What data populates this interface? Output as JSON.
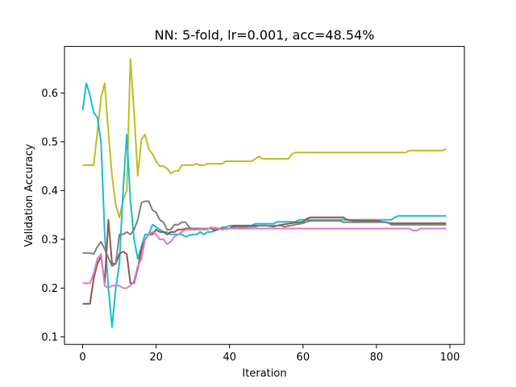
{
  "chart_data": {
    "type": "line",
    "title": "NN: 5-fold, lr=0.001, acc=48.54%",
    "xlabel": "Iteration",
    "ylabel": "Validation Accuracy",
    "xlim": [
      -4.95,
      103.95
    ],
    "ylim": [
      0.0845,
      0.6955
    ],
    "x_ticks": [
      0,
      20,
      40,
      60,
      80,
      100
    ],
    "y_ticks": [
      0.1,
      0.2,
      0.3,
      0.4,
      0.5,
      0.6
    ],
    "x_tick_labels": [
      "0",
      "20",
      "40",
      "60",
      "80",
      "100"
    ],
    "y_tick_labels": [
      "0.1",
      "0.2",
      "0.3",
      "0.4",
      "0.5",
      "0.6"
    ],
    "grid": false,
    "legend": "none",
    "series": [
      {
        "color": "#bcbd22",
        "points": [
          [
            0,
            0.452
          ],
          [
            1,
            0.452
          ],
          [
            2,
            0.452
          ],
          [
            3,
            0.452
          ],
          [
            4,
            0.52
          ],
          [
            5,
            0.59
          ],
          [
            6,
            0.62
          ],
          [
            7,
            0.52
          ],
          [
            8,
            0.43
          ],
          [
            9,
            0.37
          ],
          [
            10,
            0.345
          ],
          [
            11,
            0.38
          ],
          [
            12,
            0.4
          ],
          [
            13,
            0.67
          ],
          [
            14,
            0.56
          ],
          [
            15,
            0.43
          ],
          [
            16,
            0.505
          ],
          [
            17,
            0.515
          ],
          [
            18,
            0.485
          ],
          [
            19,
            0.475
          ],
          [
            20,
            0.46
          ],
          [
            21,
            0.45
          ],
          [
            22,
            0.45
          ],
          [
            23,
            0.445
          ],
          [
            24,
            0.435
          ],
          [
            25,
            0.44
          ],
          [
            26,
            0.44
          ],
          [
            27,
            0.452
          ],
          [
            28,
            0.452
          ],
          [
            29,
            0.452
          ],
          [
            30,
            0.452
          ],
          [
            31,
            0.455
          ],
          [
            32,
            0.452
          ],
          [
            33,
            0.452
          ],
          [
            34,
            0.455
          ],
          [
            36,
            0.455
          ],
          [
            38,
            0.455
          ],
          [
            39,
            0.46
          ],
          [
            46,
            0.46
          ],
          [
            47,
            0.465
          ],
          [
            48,
            0.47
          ],
          [
            49,
            0.465
          ],
          [
            56,
            0.465
          ],
          [
            57,
            0.475
          ],
          [
            58,
            0.478
          ],
          [
            88,
            0.478
          ],
          [
            89,
            0.482
          ],
          [
            98,
            0.482
          ],
          [
            99,
            0.486
          ]
        ]
      },
      {
        "color": "#17becf",
        "points": [
          [
            0,
            0.565
          ],
          [
            1,
            0.62
          ],
          [
            2,
            0.595
          ],
          [
            3,
            0.56
          ],
          [
            4,
            0.55
          ],
          [
            5,
            0.5
          ],
          [
            6,
            0.31
          ],
          [
            7,
            0.2
          ],
          [
            8,
            0.12
          ],
          [
            9,
            0.2
          ],
          [
            10,
            0.25
          ],
          [
            11,
            0.4
          ],
          [
            12,
            0.515
          ],
          [
            13,
            0.38
          ],
          [
            14,
            0.3
          ],
          [
            15,
            0.26
          ],
          [
            16,
            0.285
          ],
          [
            17,
            0.31
          ],
          [
            18,
            0.31
          ],
          [
            19,
            0.33
          ],
          [
            20,
            0.325
          ],
          [
            21,
            0.32
          ],
          [
            22,
            0.315
          ],
          [
            23,
            0.315
          ],
          [
            24,
            0.31
          ],
          [
            25,
            0.31
          ],
          [
            26,
            0.31
          ],
          [
            27,
            0.31
          ],
          [
            28,
            0.305
          ],
          [
            29,
            0.308
          ],
          [
            30,
            0.31
          ],
          [
            31,
            0.31
          ],
          [
            32,
            0.315
          ],
          [
            33,
            0.31
          ],
          [
            34,
            0.315
          ],
          [
            35,
            0.315
          ],
          [
            36,
            0.318
          ],
          [
            37,
            0.32
          ],
          [
            38,
            0.325
          ],
          [
            39,
            0.325
          ],
          [
            40,
            0.328
          ],
          [
            46,
            0.328
          ],
          [
            47,
            0.332
          ],
          [
            52,
            0.332
          ],
          [
            53,
            0.336
          ],
          [
            58,
            0.336
          ],
          [
            59,
            0.34
          ],
          [
            84,
            0.34
          ],
          [
            85,
            0.345
          ],
          [
            86,
            0.348
          ],
          [
            99,
            0.348
          ]
        ]
      },
      {
        "color": "#8c564b",
        "points": [
          [
            0,
            0.168
          ],
          [
            1,
            0.168
          ],
          [
            2,
            0.168
          ],
          [
            3,
            0.22
          ],
          [
            4,
            0.25
          ],
          [
            5,
            0.265
          ],
          [
            6,
            0.21
          ],
          [
            7,
            0.34
          ],
          [
            8,
            0.25
          ],
          [
            9,
            0.25
          ],
          [
            10,
            0.27
          ],
          [
            11,
            0.275
          ],
          [
            12,
            0.27
          ],
          [
            13,
            0.21
          ],
          [
            14,
            0.21
          ],
          [
            15,
            0.24
          ],
          [
            16,
            0.28
          ],
          [
            17,
            0.3
          ],
          [
            18,
            0.31
          ],
          [
            19,
            0.31
          ],
          [
            20,
            0.32
          ],
          [
            21,
            0.315
          ],
          [
            22,
            0.315
          ],
          [
            23,
            0.31
          ],
          [
            24,
            0.315
          ],
          [
            25,
            0.315
          ],
          [
            26,
            0.32
          ],
          [
            27,
            0.32
          ],
          [
            28,
            0.322
          ],
          [
            35,
            0.322
          ],
          [
            36,
            0.318
          ],
          [
            37,
            0.322
          ],
          [
            40,
            0.322
          ],
          [
            41,
            0.328
          ],
          [
            50,
            0.328
          ],
          [
            52,
            0.326
          ],
          [
            54,
            0.33
          ],
          [
            60,
            0.336
          ],
          [
            61,
            0.342
          ],
          [
            62,
            0.345
          ],
          [
            71,
            0.345
          ],
          [
            72,
            0.34
          ],
          [
            74,
            0.338
          ],
          [
            80,
            0.338
          ],
          [
            84,
            0.333
          ],
          [
            99,
            0.333
          ]
        ]
      },
      {
        "color": "#7f7f7f",
        "points": [
          [
            0,
            0.272
          ],
          [
            1,
            0.272
          ],
          [
            2,
            0.272
          ],
          [
            3,
            0.27
          ],
          [
            4,
            0.285
          ],
          [
            5,
            0.295
          ],
          [
            6,
            0.28
          ],
          [
            7,
            0.262
          ],
          [
            8,
            0.245
          ],
          [
            9,
            0.25
          ],
          [
            10,
            0.31
          ],
          [
            11,
            0.31
          ],
          [
            12,
            0.315
          ],
          [
            13,
            0.31
          ],
          [
            14,
            0.32
          ],
          [
            15,
            0.34
          ],
          [
            16,
            0.375
          ],
          [
            17,
            0.378
          ],
          [
            18,
            0.378
          ],
          [
            19,
            0.36
          ],
          [
            20,
            0.355
          ],
          [
            21,
            0.34
          ],
          [
            22,
            0.335
          ],
          [
            23,
            0.32
          ],
          [
            24,
            0.32
          ],
          [
            25,
            0.33
          ],
          [
            26,
            0.33
          ],
          [
            27,
            0.335
          ],
          [
            28,
            0.335
          ],
          [
            29,
            0.325
          ],
          [
            30,
            0.32
          ],
          [
            31,
            0.32
          ],
          [
            32,
            0.322
          ],
          [
            34,
            0.322
          ],
          [
            35,
            0.322
          ],
          [
            36,
            0.324
          ],
          [
            37,
            0.322
          ],
          [
            40,
            0.322
          ],
          [
            42,
            0.326
          ],
          [
            43,
            0.325
          ],
          [
            46,
            0.326
          ],
          [
            47,
            0.326
          ],
          [
            48,
            0.328
          ],
          [
            54,
            0.328
          ],
          [
            55,
            0.326
          ],
          [
            58,
            0.33
          ],
          [
            60,
            0.333
          ],
          [
            61,
            0.336
          ],
          [
            62,
            0.338
          ],
          [
            70,
            0.338
          ],
          [
            71,
            0.335
          ],
          [
            76,
            0.335
          ],
          [
            80,
            0.335
          ],
          [
            83,
            0.335
          ],
          [
            84,
            0.33
          ],
          [
            99,
            0.33
          ]
        ]
      },
      {
        "color": "#e377c2",
        "points": [
          [
            0,
            0.21
          ],
          [
            1,
            0.21
          ],
          [
            2,
            0.21
          ],
          [
            3,
            0.23
          ],
          [
            4,
            0.26
          ],
          [
            5,
            0.27
          ],
          [
            6,
            0.205
          ],
          [
            7,
            0.2
          ],
          [
            8,
            0.205
          ],
          [
            9,
            0.205
          ],
          [
            10,
            0.205
          ],
          [
            11,
            0.2
          ],
          [
            12,
            0.2
          ],
          [
            13,
            0.205
          ],
          [
            14,
            0.215
          ],
          [
            15,
            0.245
          ],
          [
            16,
            0.26
          ],
          [
            17,
            0.3
          ],
          [
            18,
            0.31
          ],
          [
            19,
            0.315
          ],
          [
            20,
            0.31
          ],
          [
            21,
            0.3
          ],
          [
            22,
            0.3
          ],
          [
            23,
            0.29
          ],
          [
            24,
            0.295
          ],
          [
            25,
            0.305
          ],
          [
            26,
            0.31
          ],
          [
            27,
            0.315
          ],
          [
            28,
            0.32
          ],
          [
            33,
            0.32
          ],
          [
            34,
            0.32
          ],
          [
            35,
            0.325
          ],
          [
            36,
            0.322
          ],
          [
            37,
            0.322
          ],
          [
            38,
            0.32
          ],
          [
            40,
            0.322
          ],
          [
            89,
            0.322
          ],
          [
            90,
            0.318
          ],
          [
            91,
            0.318
          ],
          [
            92,
            0.322
          ],
          [
            99,
            0.322
          ]
        ]
      }
    ]
  }
}
